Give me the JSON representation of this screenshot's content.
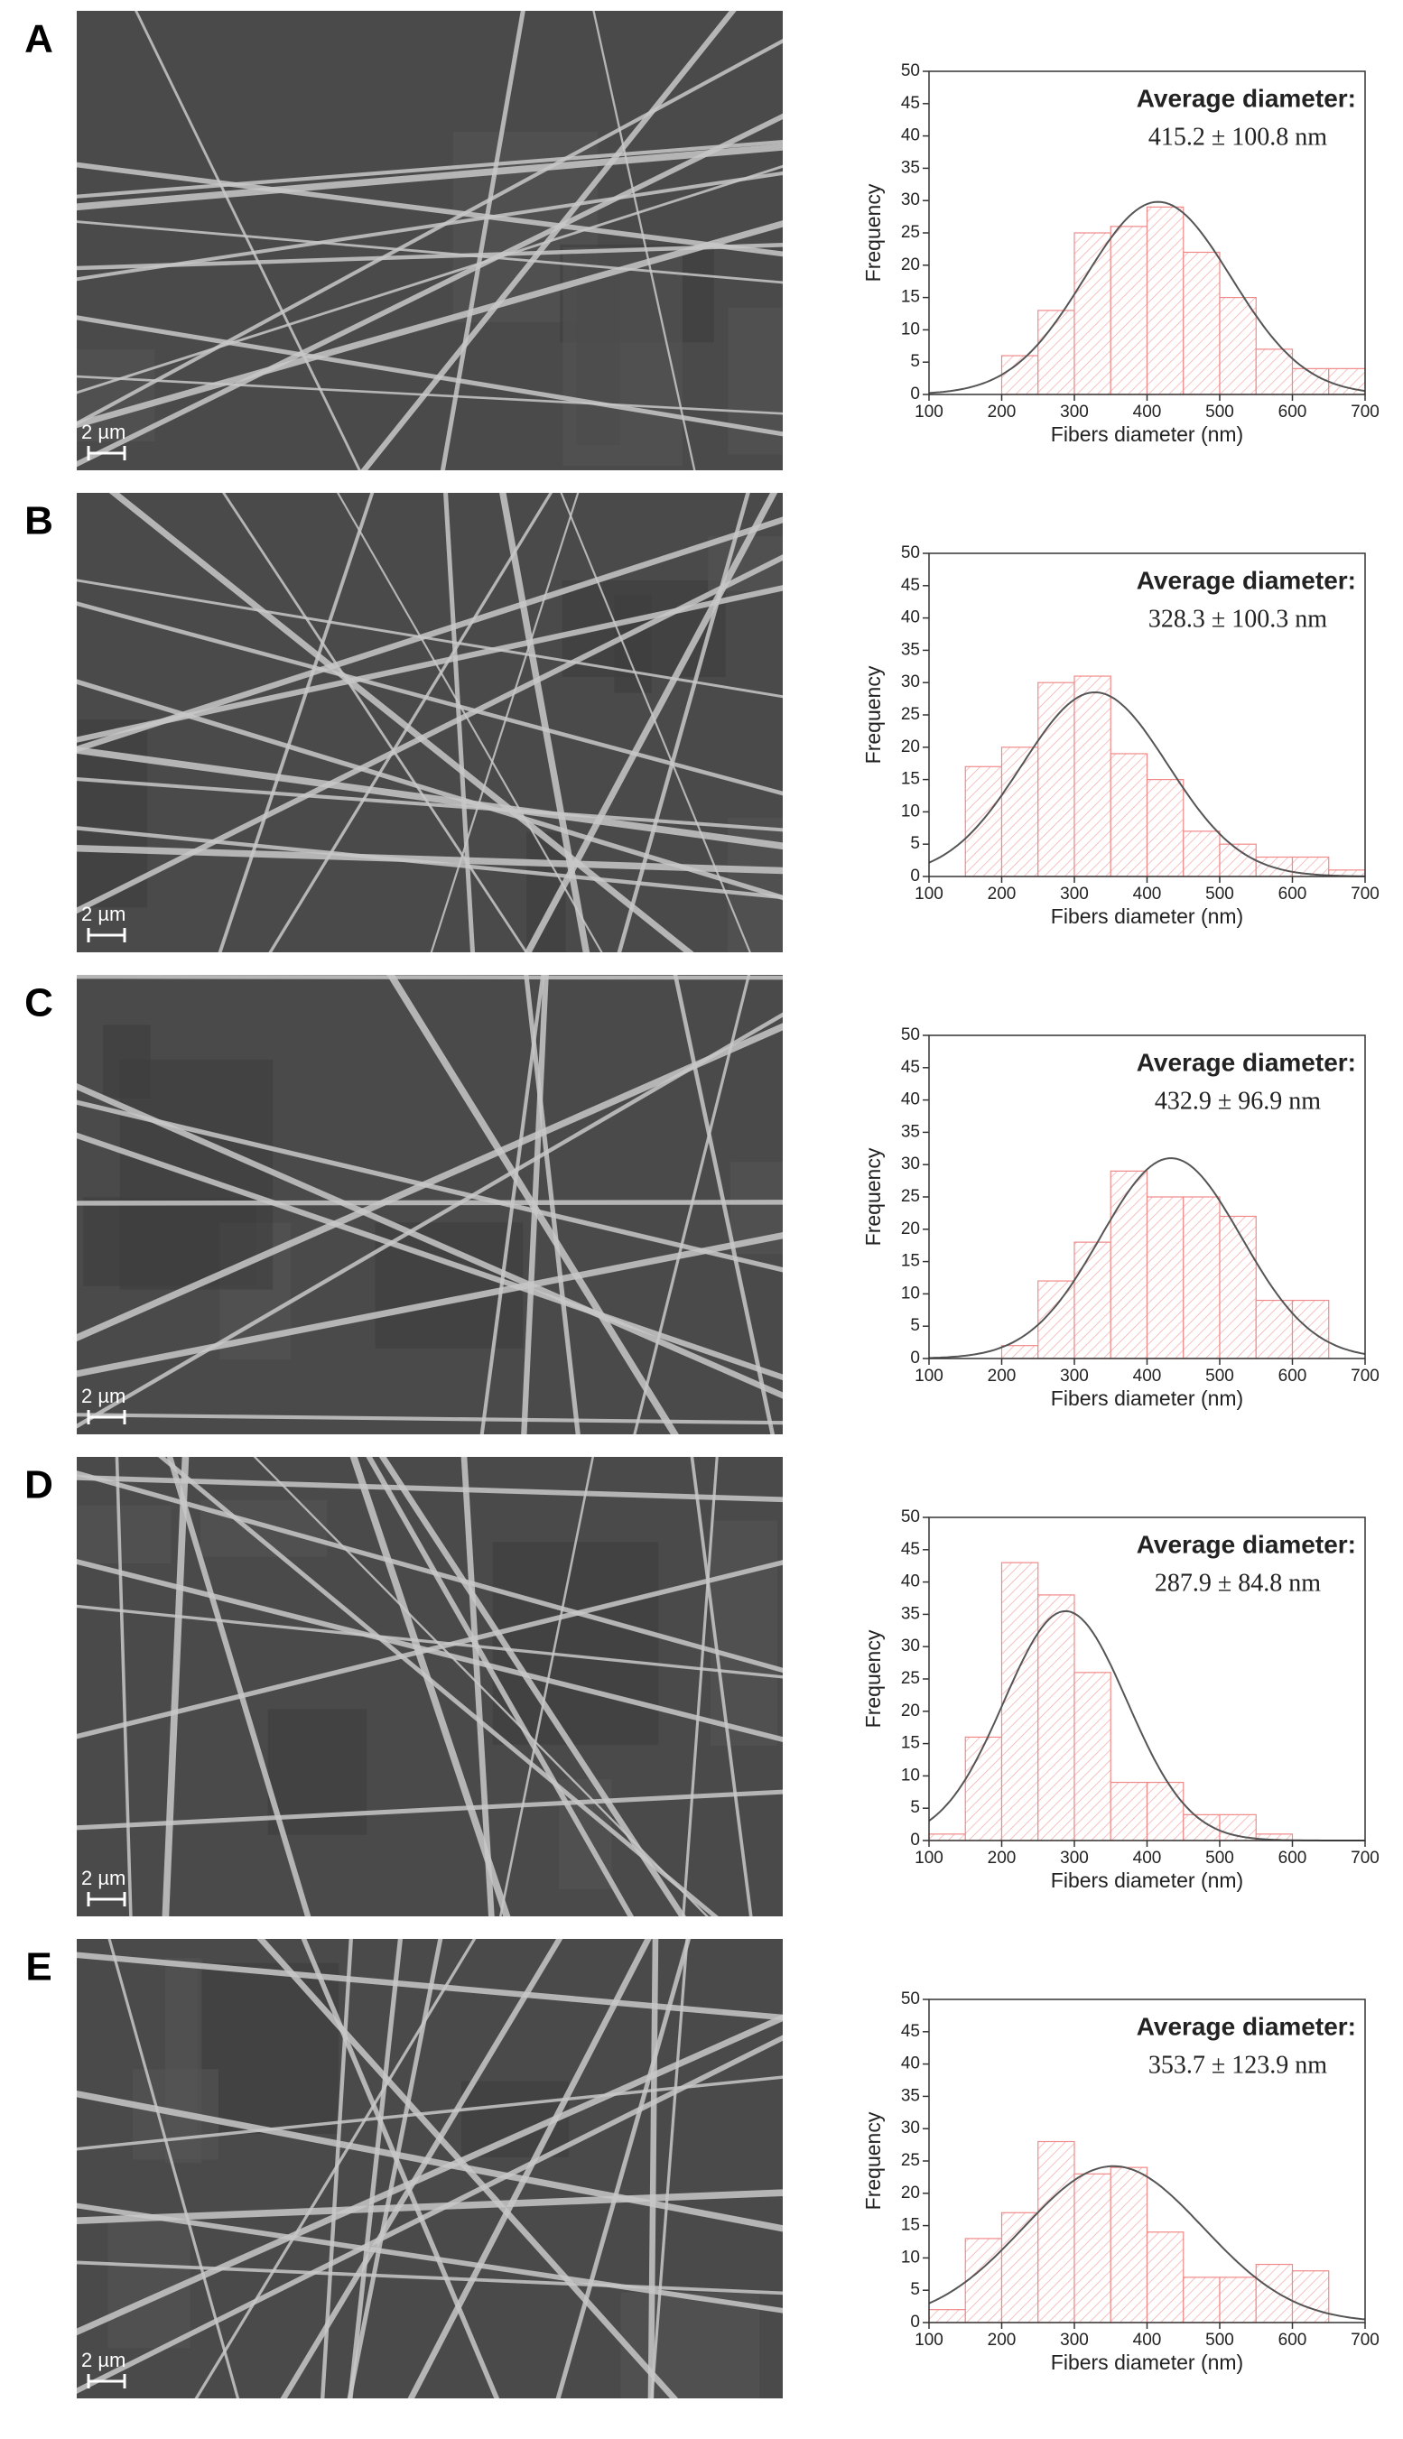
{
  "panels": [
    {
      "label": "A",
      "scale_bar": "2 µm"
    },
    {
      "label": "B",
      "scale_bar": "2 µm"
    },
    {
      "label": "C",
      "scale_bar": "2 µm"
    },
    {
      "label": "D",
      "scale_bar": "2 µm"
    },
    {
      "label": "E",
      "scale_bar": "2 µm"
    }
  ],
  "chart_data": [
    {
      "type": "histogram",
      "annotation_title": "Average diameter:",
      "annotation_value": "415.2 ± 100.8 nm",
      "x_label": "Fibers diameter (nm)",
      "y_label": "Frequency",
      "bins": [
        200,
        250,
        300,
        350,
        400,
        450,
        500,
        550,
        600,
        650,
        700
      ],
      "counts": [
        6,
        13,
        25,
        26,
        29,
        22,
        15,
        7,
        4,
        4
      ],
      "color": "#f08a8a",
      "fit": {
        "mean": 415.2,
        "sd": 100.8,
        "peak": 29.8
      },
      "fit_color": "#555555",
      "xlim": [
        100,
        700
      ],
      "xticks": [
        100,
        200,
        300,
        400,
        500,
        600,
        700
      ],
      "ylim": [
        0,
        50
      ],
      "yticks": [
        0,
        5,
        10,
        15,
        20,
        25,
        30,
        35,
        40,
        45,
        50
      ]
    },
    {
      "type": "histogram",
      "annotation_title": "Average diameter:",
      "annotation_value": "328.3 ± 100.3 nm",
      "x_label": "Fibers diameter (nm)",
      "y_label": "Frequency",
      "bins": [
        150,
        200,
        250,
        300,
        350,
        400,
        450,
        500,
        550,
        600,
        650,
        700
      ],
      "counts": [
        17,
        20,
        30,
        31,
        19,
        15,
        7,
        5,
        3,
        3,
        1
      ],
      "color": "#f08a8a",
      "fit": {
        "mean": 328.3,
        "sd": 100.3,
        "peak": 28.5
      },
      "fit_color": "#555555",
      "xlim": [
        100,
        700
      ],
      "xticks": [
        100,
        200,
        300,
        400,
        500,
        600,
        700
      ],
      "ylim": [
        0,
        50
      ],
      "yticks": [
        0,
        5,
        10,
        15,
        20,
        25,
        30,
        35,
        40,
        45,
        50
      ]
    },
    {
      "type": "histogram",
      "annotation_title": "Average diameter:",
      "annotation_value": "432.9 ± 96.9 nm",
      "x_label": "Fibers diameter (nm)",
      "y_label": "Frequency",
      "bins": [
        200,
        250,
        300,
        350,
        400,
        450,
        500,
        550,
        600,
        650
      ],
      "counts": [
        2,
        12,
        18,
        29,
        25,
        25,
        22,
        9,
        9
      ],
      "color": "#f08a8a",
      "fit": {
        "mean": 432.9,
        "sd": 96.9,
        "peak": 31
      },
      "fit_color": "#555555",
      "xlim": [
        100,
        700
      ],
      "xticks": [
        100,
        200,
        300,
        400,
        500,
        600,
        700
      ],
      "ylim": [
        0,
        50
      ],
      "yticks": [
        0,
        5,
        10,
        15,
        20,
        25,
        30,
        35,
        40,
        45,
        50
      ]
    },
    {
      "type": "histogram",
      "annotation_title": "Average diameter:",
      "annotation_value": "287.9 ± 84.8 nm",
      "x_label": "Fibers diameter (nm)",
      "y_label": "Frequency",
      "bins": [
        100,
        150,
        200,
        250,
        300,
        350,
        400,
        450,
        500,
        550,
        600
      ],
      "counts": [
        1,
        16,
        43,
        38,
        26,
        9,
        9,
        4,
        4,
        1
      ],
      "color": "#f08a8a",
      "fit": {
        "mean": 287.9,
        "sd": 84.8,
        "peak": 35.5
      },
      "fit_color": "#555555",
      "xlim": [
        100,
        700
      ],
      "xticks": [
        100,
        200,
        300,
        400,
        500,
        600,
        700
      ],
      "ylim": [
        0,
        50
      ],
      "yticks": [
        0,
        5,
        10,
        15,
        20,
        25,
        30,
        35,
        40,
        45,
        50
      ]
    },
    {
      "type": "histogram",
      "annotation_title": "Average diameter:",
      "annotation_value": "353.7 ± 123.9 nm",
      "x_label": "Fibers diameter (nm)",
      "y_label": "Frequency",
      "bins": [
        100,
        150,
        200,
        250,
        300,
        350,
        400,
        450,
        500,
        550,
        600,
        650
      ],
      "counts": [
        2,
        13,
        17,
        28,
        23,
        24,
        14,
        7,
        7,
        9,
        8
      ],
      "color": "#f08a8a",
      "fit": {
        "mean": 353.7,
        "sd": 123.9,
        "peak": 24.2
      },
      "fit_color": "#555555",
      "xlim": [
        100,
        700
      ],
      "xticks": [
        100,
        200,
        300,
        400,
        500,
        600,
        700
      ],
      "ylim": [
        0,
        50
      ],
      "yticks": [
        0,
        5,
        10,
        15,
        20,
        25,
        30,
        35,
        40,
        45,
        50
      ]
    }
  ]
}
